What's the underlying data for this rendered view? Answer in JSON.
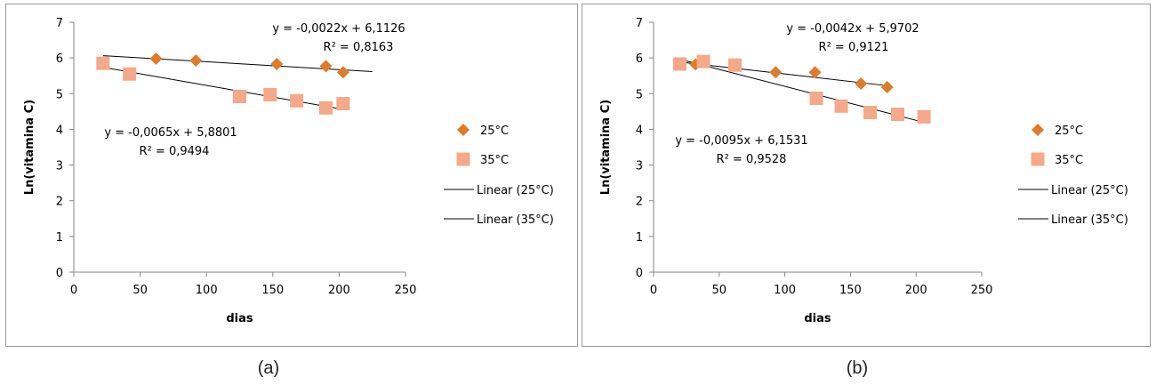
{
  "charts": [
    {
      "caption": "(a)",
      "equations": [
        {
          "line1": "y = -0,0022x + 6,1126",
          "line2": "R² = 0,8163"
        },
        {
          "line1": "y = -0,0065x + 5,8801",
          "line2": "R² = 0,9494"
        }
      ]
    },
    {
      "caption": "(b)",
      "equations": [
        {
          "line1": "y = -0,0042x + 5,9702",
          "line2": "R² = 0,9121"
        },
        {
          "line1": "y = -0,0095x + 6,1531",
          "line2": "R² = 0,9528"
        }
      ]
    }
  ],
  "chart_data": [
    {
      "type": "scatter",
      "xlabel": "dias",
      "ylabel": "Ln(vitamina C)",
      "xlim": [
        0,
        250
      ],
      "ylim": [
        0,
        7
      ],
      "xticks": [
        0,
        50,
        100,
        150,
        200,
        250
      ],
      "yticks": [
        0,
        1,
        2,
        3,
        4,
        5,
        6,
        7
      ],
      "grid": false,
      "legend_position": "right",
      "series": [
        {
          "name": "25°C",
          "marker": "diamond",
          "color": "#e07b2a",
          "x": [
            62,
            92,
            153,
            190,
            203
          ],
          "y": [
            5.98,
            5.93,
            5.83,
            5.77,
            5.6
          ]
        },
        {
          "name": "35°C",
          "marker": "square",
          "color": "#f4a98a",
          "x": [
            22,
            42,
            125,
            148,
            168,
            190,
            203
          ],
          "y": [
            5.85,
            5.55,
            4.92,
            4.97,
            4.8,
            4.6,
            4.72
          ]
        }
      ],
      "trendlines": [
        {
          "name": "Linear (25°C)",
          "slope": -0.0022,
          "intercept": 6.1126,
          "x_range": [
            22,
            225
          ]
        },
        {
          "name": "Linear (35°C)",
          "slope": -0.0065,
          "intercept": 5.8801,
          "x_range": [
            22,
            205
          ]
        }
      ]
    },
    {
      "type": "scatter",
      "xlabel": "dias",
      "ylabel": "Ln(vitamina C)",
      "xlim": [
        0,
        250
      ],
      "ylim": [
        0,
        7
      ],
      "xticks": [
        0,
        50,
        100,
        150,
        200,
        250
      ],
      "yticks": [
        0,
        1,
        2,
        3,
        4,
        5,
        6,
        7
      ],
      "grid": false,
      "legend_position": "right",
      "series": [
        {
          "name": "25°C",
          "marker": "diamond",
          "color": "#e07b2a",
          "x": [
            32,
            62,
            93,
            123,
            158,
            178
          ],
          "y": [
            5.82,
            5.78,
            5.6,
            5.6,
            5.28,
            5.18
          ]
        },
        {
          "name": "35°C",
          "marker": "square",
          "color": "#f4a98a",
          "x": [
            20,
            38,
            62,
            124,
            143,
            165,
            186,
            206
          ],
          "y": [
            5.83,
            5.9,
            5.8,
            4.87,
            4.65,
            4.47,
            4.42,
            4.35
          ]
        }
      ],
      "trendlines": [
        {
          "name": "Linear (25°C)",
          "slope": -0.0042,
          "intercept": 5.9702,
          "x_range": [
            20,
            180
          ]
        },
        {
          "name": "Linear (35°C)",
          "slope": -0.0095,
          "intercept": 6.1531,
          "x_range": [
            20,
            206
          ]
        }
      ]
    }
  ]
}
